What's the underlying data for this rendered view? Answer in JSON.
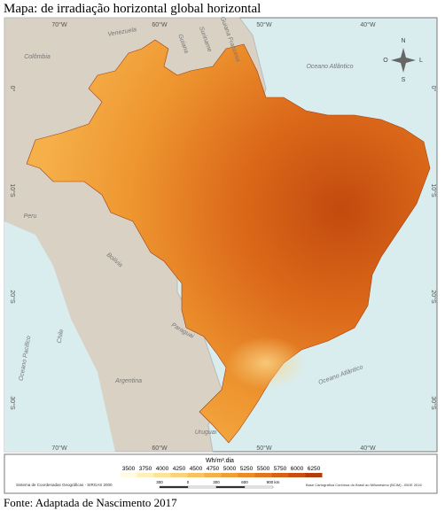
{
  "title": "Mapa: de irradiação horizontal global horizontal",
  "source": "Fonte: Adaptada de Nascimento 2017",
  "map": {
    "longitudes": [
      "70°W",
      "60°W",
      "50°W",
      "40°W"
    ],
    "latitudes": [
      "0°",
      "10°S",
      "20°S",
      "30°S"
    ],
    "places": [
      "Colômbia",
      "Venezuela",
      "Guiana",
      "Suriname",
      "Guiana Francesa",
      "Oceano Atlântico",
      "Peru",
      "Bolívia",
      "Chile",
      "Paraguai",
      "Argentina",
      "Uruguai",
      "Oceano Pacífico",
      "Oceano Atlântico"
    ],
    "compass": [
      "N",
      "S",
      "L",
      "O"
    ]
  },
  "legend": {
    "title": "Wh/m².dia",
    "breaks": [
      3500,
      3750,
      4000,
      4250,
      4500,
      4750,
      5000,
      5250,
      5500,
      5750,
      6000,
      6250
    ],
    "colors": [
      "#fffbe0",
      "#fdf0b8",
      "#fbe39a",
      "#f9d37c",
      "#f7c260",
      "#f4b049",
      "#f09e36",
      "#ea8a28",
      "#e2761e",
      "#d66216",
      "#c94f10",
      "#b33d0a"
    ],
    "scale": [
      "300",
      "0",
      "300",
      "600",
      "900 km"
    ],
    "crs": "Sistema de Coordenadas Geográficas - SIRGAS 2000",
    "base": "Base Cartográfica Contínua do Brasil ao Milionésimo (BCIM) - IBGE 2016"
  }
}
